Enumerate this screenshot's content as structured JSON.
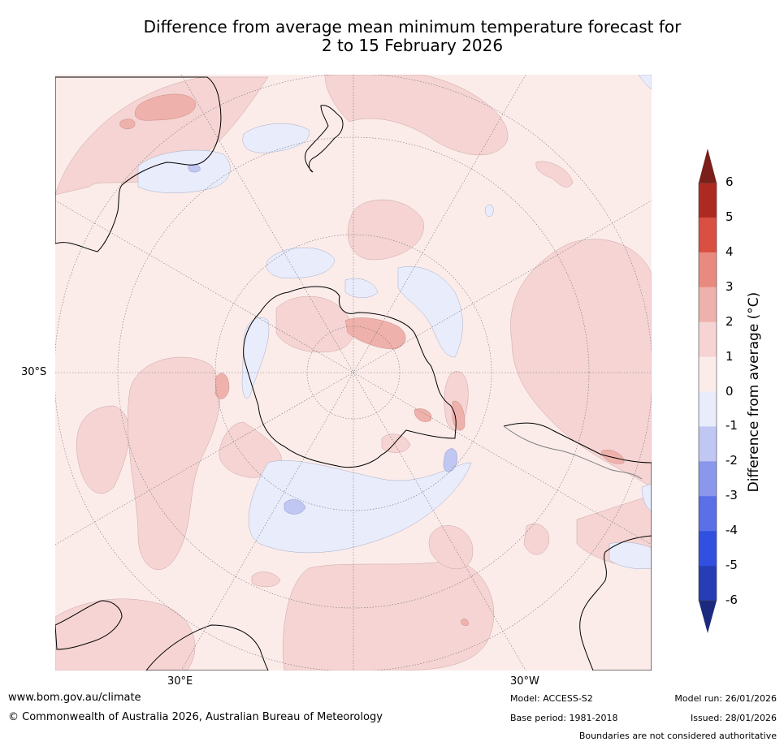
{
  "title": {
    "line1": "Difference from average mean minimum temperature forecast for",
    "line2": "2 to 15 February 2026"
  },
  "map": {
    "projection": "south-polar-stereographic",
    "lat_label": "30°S",
    "lon_labels": [
      "30°E",
      "30°W"
    ]
  },
  "colorbar": {
    "title": "Difference from average (°C)",
    "tick_labels": [
      "6",
      "5",
      "4",
      "3",
      "2",
      "1",
      "0",
      "-1",
      "-2",
      "-3",
      "-4",
      "-5",
      "-6"
    ],
    "colors": {
      "above_6": "#7a1f1a",
      "5_to_6": "#ad2a22",
      "4_to_5": "#d94f41",
      "3_to_4": "#e98a80",
      "2_to_3": "#efb1ab",
      "1_to_2": "#f5d4d3",
      "0_to_1": "#fbecea",
      "-1_to_0": "#e8ecfb",
      "-2_to_-1": "#c0c7f3",
      "-3_to_-2": "#8a97ec",
      "-4_to_-3": "#5b6fe6",
      "-5_to_-4": "#3150e0",
      "-6_to_-5": "#263db3",
      "below_-6": "#1b2a7e"
    }
  },
  "footer": {
    "website": "www.bom.gov.au/climate",
    "copyright": "© Commonwealth of Australia 2026, Australian Bureau of Meteorology",
    "model": "Model: ACCESS-S2",
    "base_period": "Base period: 1981-2018",
    "model_run": "Model run: 26/01/2026",
    "issued": "Issued: 28/01/2026",
    "disclaimer": "Boundaries are not considered authoritative"
  }
}
